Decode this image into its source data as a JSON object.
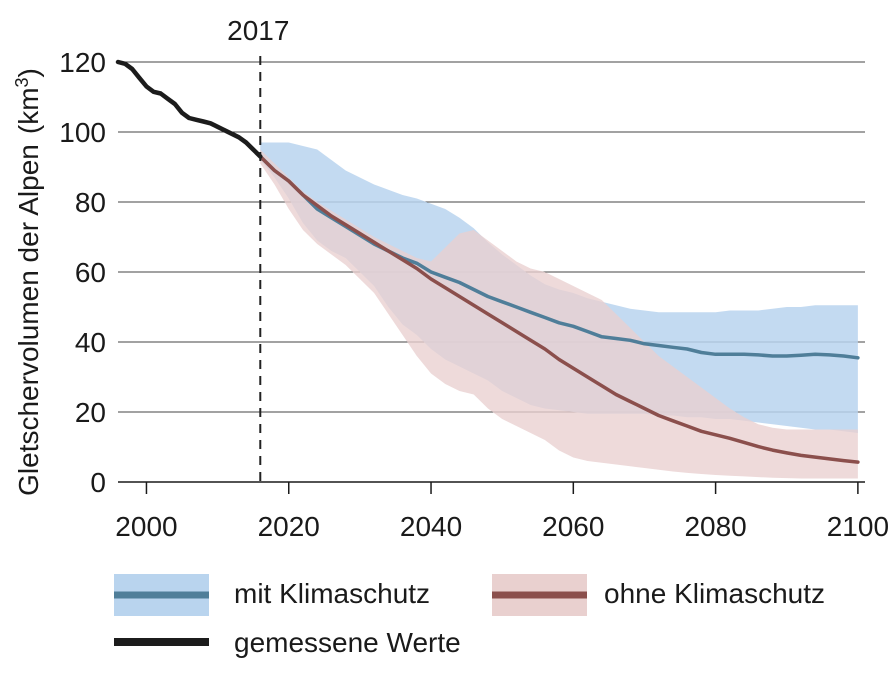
{
  "chart_data": {
    "type": "line",
    "title": "",
    "xlabel": "",
    "ylabel": "Gletschervolumen der Alpen",
    "ylabel_unit_base": "km",
    "ylabel_unit_sup": "3",
    "xlim": [
      1996,
      2101
    ],
    "ylim": [
      0,
      120
    ],
    "x_ticks": [
      2000,
      2020,
      2040,
      2060,
      2080,
      2100
    ],
    "y_ticks": [
      0,
      20,
      40,
      60,
      80,
      100,
      120
    ],
    "grid": "horizontal",
    "legend_position": "bottom",
    "annotation": {
      "x": 2016,
      "label": "2017"
    },
    "series": [
      {
        "name": "gemessene Werte",
        "color": "#1c1c1c",
        "x": [
          1996,
          1997,
          1998,
          1999,
          2000,
          2001,
          2002,
          2003,
          2004,
          2005,
          2006,
          2007,
          2008,
          2009,
          2010,
          2011,
          2012,
          2013,
          2014,
          2015,
          2016
        ],
        "y": [
          120,
          119.5,
          118,
          115.5,
          113,
          111.5,
          111,
          109.5,
          108,
          105.5,
          104,
          103.5,
          103,
          102.5,
          101.5,
          100.5,
          99.5,
          98.5,
          97,
          95,
          93
        ]
      },
      {
        "name": "mit Klimaschutz",
        "color": "#4f7e99",
        "band_color": "#b9d4ee",
        "x": [
          2016,
          2018,
          2020,
          2022,
          2024,
          2026,
          2028,
          2030,
          2032,
          2034,
          2036,
          2038,
          2040,
          2042,
          2044,
          2046,
          2048,
          2050,
          2052,
          2054,
          2056,
          2058,
          2060,
          2062,
          2064,
          2066,
          2068,
          2070,
          2072,
          2074,
          2076,
          2078,
          2080,
          2082,
          2084,
          2086,
          2088,
          2090,
          2092,
          2094,
          2096,
          2098,
          2100
        ],
        "y": [
          93,
          89,
          86,
          82,
          78,
          75.5,
          73,
          70.5,
          68,
          66,
          64,
          62.5,
          60,
          58.5,
          57,
          55,
          53,
          51.5,
          50,
          48.5,
          47,
          45.5,
          44.5,
          43,
          41.5,
          41,
          40.5,
          39.5,
          39,
          38.5,
          38,
          37,
          36.5,
          36.5,
          36.5,
          36.3,
          36,
          36,
          36.2,
          36.5,
          36.3,
          36,
          35.5
        ],
        "upper": [
          97,
          97,
          97,
          96,
          95,
          92,
          89,
          87,
          85,
          83.5,
          82,
          81,
          79.5,
          78,
          75.5,
          72.5,
          68.5,
          65,
          62,
          59,
          56.5,
          55,
          54,
          52.5,
          51.5,
          50.5,
          49.5,
          49,
          48.5,
          48.5,
          48.5,
          48.5,
          48.5,
          49,
          49,
          49,
          49.5,
          50,
          50,
          50.5,
          50.5,
          50.5,
          50.5
        ],
        "lower": [
          92,
          87,
          81,
          74,
          69,
          66,
          64,
          60,
          56,
          50,
          45,
          42,
          38,
          35,
          33,
          31,
          29,
          26,
          24,
          22,
          21,
          20.5,
          20,
          19.5,
          19.5,
          19.5,
          19.5,
          19.5,
          19,
          19,
          18.5,
          18.5,
          18,
          18,
          17.5,
          17,
          16.5,
          16,
          15.5,
          15,
          15,
          14.5,
          14
        ]
      },
      {
        "name": "ohne Klimaschutz",
        "color": "#8b4f4c",
        "band_color": "#e9d0cf",
        "x": [
          2016,
          2018,
          2020,
          2022,
          2024,
          2026,
          2028,
          2030,
          2032,
          2034,
          2036,
          2038,
          2040,
          2042,
          2044,
          2046,
          2048,
          2050,
          2052,
          2054,
          2056,
          2058,
          2060,
          2062,
          2064,
          2066,
          2068,
          2070,
          2072,
          2074,
          2076,
          2078,
          2080,
          2082,
          2084,
          2086,
          2088,
          2090,
          2092,
          2094,
          2096,
          2098,
          2100
        ],
        "y": [
          93,
          89,
          86,
          82,
          79,
          76,
          73.5,
          71,
          68.5,
          66,
          63.5,
          61,
          58,
          55.5,
          53,
          50.5,
          48,
          45.5,
          43,
          40.5,
          38,
          35,
          32.5,
          30,
          27.5,
          25,
          23,
          21,
          19,
          17.5,
          16,
          14.5,
          13.5,
          12.5,
          11.3,
          10.1,
          9.1,
          8.3,
          7.6,
          7.1,
          6.6,
          6.1,
          5.7
        ],
        "upper": [
          95,
          91,
          87,
          83,
          80,
          77.5,
          75,
          72.5,
          70,
          68,
          66,
          64,
          63,
          67,
          71,
          72,
          69,
          66,
          63,
          61,
          60,
          58,
          56,
          54,
          52,
          48,
          44,
          40,
          36,
          33,
          30,
          27,
          24,
          21,
          18.5,
          16.5,
          15.5,
          15,
          15,
          15,
          15,
          15,
          15
        ],
        "lower": [
          91,
          85,
          78,
          72,
          68,
          65,
          62,
          58,
          54,
          48,
          42,
          36,
          31,
          28,
          26,
          25,
          21,
          18,
          16,
          14,
          12,
          9,
          7,
          6,
          5.5,
          5,
          4.5,
          4,
          3.5,
          3,
          2.6,
          2.3,
          2,
          1.8,
          1.6,
          1.4,
          1.2,
          1.1,
          1,
          1,
          1,
          1,
          1
        ]
      }
    ]
  }
}
